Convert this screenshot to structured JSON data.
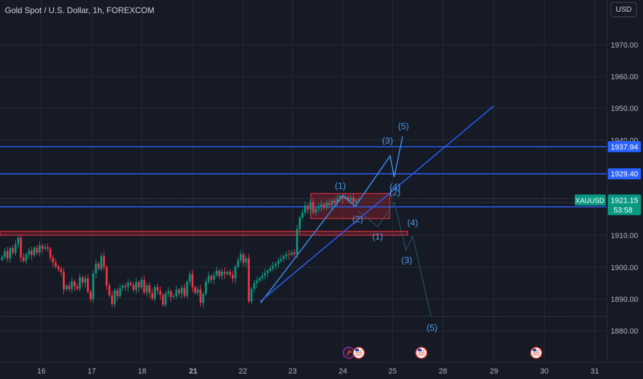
{
  "header": {
    "title": "Gold Spot / U.S. Dollar, 1h, FOREXCOM",
    "currency_button": "USD"
  },
  "colors": {
    "background": "#161a25",
    "grid": "#252a36",
    "hline": "#2962ff",
    "wave": "#3d8fe8",
    "label": "#4b9be6",
    "bull": "#089981",
    "bear": "#f23645",
    "zone_fill": "#7a1f2b",
    "zone_border": "#f23645",
    "price_tag": "#089981",
    "line_tag": "#2962ff"
  },
  "chart_data": {
    "type": "candlestick",
    "symbol": "XAUUSD",
    "x_labels": [
      "16",
      "17",
      "18",
      "21",
      "22",
      "23",
      "24",
      "25",
      "28",
      "29",
      "30",
      "31"
    ],
    "bold_x_labels": [
      "21"
    ],
    "y_ticks": [
      1970,
      1960,
      1950,
      1940,
      1910,
      1900,
      1890,
      1880
    ],
    "y_tick_labels": [
      "1970.00",
      "1960.00",
      "1950.00",
      "1940.00",
      "1910.00",
      "1900.00",
      "1890.00",
      "1880.00"
    ],
    "ylim": [
      1874,
      1980
    ],
    "horizontal_lines": [
      {
        "price": 1937.94,
        "label": "1937.94"
      },
      {
        "price": 1929.4,
        "label": "1929.40"
      },
      {
        "price": 1919.02,
        "label": "1919.02"
      }
    ],
    "current_price": {
      "symbol_tag": "XAUUSD",
      "value": "1921.15",
      "countdown": "53:58",
      "price": 1921.15
    },
    "dotted_levels": [
      1921.6,
      1920.4,
      1884.5
    ],
    "zones": [
      {
        "from_x": "23.2",
        "to_x": "25",
        "top": 1923.2,
        "bottom": 1915.3
      },
      {
        "from_x": "15.2",
        "to_x": "25.2",
        "top": 1911.3,
        "bottom": 1910.1
      }
    ],
    "candles": {
      "closes": [
        1903.2,
        1905.1,
        1902.8,
        1906.0,
        1904.5,
        1907.2,
        1909.3,
        1903.1,
        1902.0,
        1904.0,
        1905.2,
        1903.8,
        1906.1,
        1904.6,
        1906.8,
        1905.9,
        1906.3,
        1905.8,
        1903.0,
        1901.5,
        1900.2,
        1899.4,
        1898.5,
        1893.0,
        1894.2,
        1893.1,
        1895.6,
        1894.0,
        1893.2,
        1896.8,
        1895.1,
        1896.5,
        1892.3,
        1889.9,
        1898.0,
        1901.1,
        1899.5,
        1903.5,
        1900.1,
        1894.2,
        1891.2,
        1888.4,
        1892.7,
        1890.9,
        1893.4,
        1894.2,
        1893.8,
        1895.1,
        1894.5,
        1892.8,
        1895.3,
        1893.6,
        1896.0,
        1892.1,
        1894.3,
        1891.9,
        1890.1,
        1893.8,
        1892.6,
        1891.3,
        1888.2,
        1891.7,
        1892.5,
        1890.6,
        1890.9,
        1892.9,
        1891.8,
        1893.5,
        1891.0,
        1895.5,
        1897.8,
        1893.7,
        1891.9,
        1893.1,
        1888.8,
        1891.6,
        1895.4,
        1897.3,
        1896.1,
        1897.5,
        1898.9,
        1897.2,
        1898.6,
        1897.9,
        1898.5,
        1897.6,
        1896.4,
        1900.2,
        1902.2,
        1904.1,
        1901.5,
        1902.8,
        1889.3,
        1893.2,
        1895.0,
        1895.8,
        1896.5,
        1897.4,
        1898.2,
        1898.9,
        1899.6,
        1900.4,
        1901.1,
        1902.0,
        1902.6,
        1903.5,
        1904.1,
        1903.9,
        1904.6,
        1904.1,
        1912.0,
        1915.6,
        1917.2,
        1919.4,
        1918.1,
        1920.5,
        1917.2,
        1918.4,
        1919.1,
        1919.8,
        1918.7,
        1920.3,
        1919.6,
        1921.0,
        1920.2,
        1921.6,
        1922.4,
        1921.5,
        1922.1,
        1921.1,
        1922.0,
        1920.4,
        1921.4,
        1921.15
      ]
    },
    "projection_up": {
      "points": [
        [
          1889.8,
          1888.8
        ],
        [
          24.0,
          1922.6
        ],
        [
          24.25,
          1919.2
        ],
        [
          24.95,
          1935.0
        ],
        [
          25.1,
          1928.4
        ],
        [
          25.6,
          1941.2
        ]
      ],
      "labels": [
        {
          "text": "(1)",
          "x": 23.95,
          "y": 1924.7
        },
        {
          "text": "(2)",
          "x": 24.3,
          "y": 1914.2
        },
        {
          "text": "(3)",
          "x": 24.9,
          "y": 1938.9
        },
        {
          "text": "(4)",
          "x": 25.15,
          "y": 1924.3
        },
        {
          "text": "(5)",
          "x": 25.65,
          "y": 1943.4
        }
      ],
      "trendline": {
        "from": [
          22.35,
          1889.2
        ],
        "to": [
          29.0,
          1950.8
        ]
      }
    },
    "projection_down": {
      "points": [
        [
          24.3,
          1917.8
        ],
        [
          24.7,
          1912.8
        ],
        [
          25.1,
          1920.3
        ],
        [
          25.8,
          1905.3
        ],
        [
          26.2,
          1909.8
        ],
        [
          27.3,
          1884.3
        ]
      ],
      "labels": [
        {
          "text": "(1)",
          "x": 24.7,
          "y": 1908.7
        },
        {
          "text": "(2)",
          "x": 25.15,
          "y": 1922.6
        },
        {
          "text": "(3)",
          "x": 25.85,
          "y": 1901.2
        },
        {
          "text": "(4)",
          "x": 26.2,
          "y": 1913.1
        },
        {
          "text": "(5)",
          "x": 27.35,
          "y": 1880.0
        }
      ]
    },
    "event_markers": [
      {
        "x": "23.9",
        "type": "alert-flag"
      },
      {
        "x": "24.0",
        "type": "us-flag"
      },
      {
        "x": "25.4",
        "type": "us-flag"
      },
      {
        "x": "29.4",
        "type": "us-flag"
      }
    ]
  }
}
